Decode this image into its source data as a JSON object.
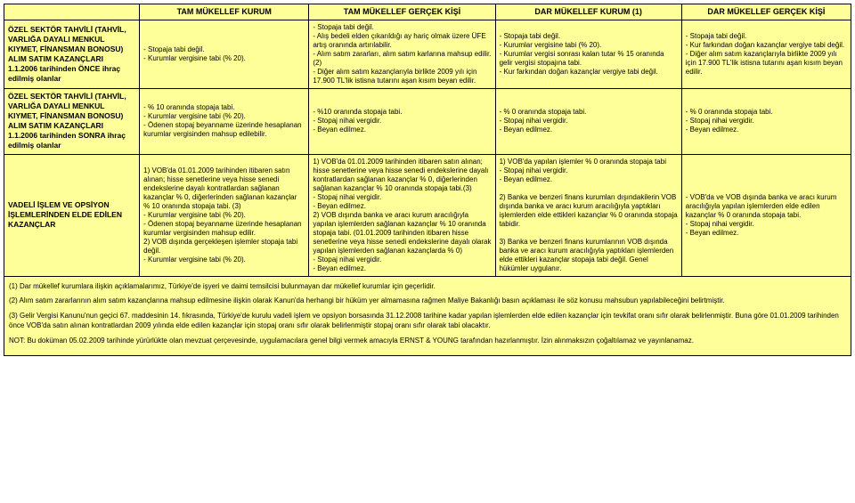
{
  "colors": {
    "background": "#ffff99",
    "border": "#000000",
    "text": "#000000"
  },
  "headers": {
    "c0": "",
    "c1": "TAM MÜKELLEF KURUM",
    "c2": "TAM MÜKELLEF GERÇEK KİŞİ",
    "c3": "DAR MÜKELLEF KURUM (1)",
    "c4": "DAR MÜKELLEF GERÇEK KİŞİ"
  },
  "rows": [
    {
      "label": "ÖZEL SEKTÖR TAHVİLİ (TAHVİL, VARLIĞA DAYALI MENKUL KIYMET, FİNANSMAN BONOSU) ALIM SATIM KAZANÇLARI\n1.1.2006 tarihinden ÖNCE ihraç edilmiş olanlar",
      "c1": "- Stopaja tabi değil.\n- Kurumlar vergisine tabi (% 20).",
      "c2": "- Stopaja tabi değil.\n- Alış bedeli elden çıkarıldığı ay hariç olmak üzere ÜFE artış oranında artırılabilir.\n- Alım satım zararları, alım satım karlarına mahsup edilir. (2)\n- Diğer alım satım kazançlarıyla birlikte 2009 yılı için 17.900 TL'lik istisna tutarını aşan kısım beyan edilir.",
      "c3": "- Stopaja tabi değil.\n- Kurumlar vergisine tabi (% 20).\n- Kurumlar vergisi sonrası kalan tutar % 15 oranında gelir vergisi stopajına tabi.\n- Kur farkından doğan kazançlar vergiye tabi değil.",
      "c4": "- Stopaja tabi değil.\n- Kur farkından doğan kazançlar vergiye tabi değil.\n- Diğer alım satım kazançlarıyla birlikte 2009 yılı için 17.900 TL'lik istisna tutarını aşan kısım beyan edilir."
    },
    {
      "label": "ÖZEL SEKTÖR TAHVİLİ (TAHVİL, VARLIĞA DAYALI MENKUL KIYMET, FİNANSMAN BONOSU) ALIM SATIM KAZANÇLARI\n1.1.2006 tarihinden SONRA ihraç edilmiş olanlar",
      "c1": "- % 10 oranında stopaja tabi.\n- Kurumlar vergisine tabi (% 20).\n- Ödenen stopaj beyanname üzerinde hesaplanan kurumlar vergisinden mahsup edilebilir.",
      "c2": "- %10 oranında stopaja tabi.\n- Stopaj nihai vergidir.\n- Beyan edilmez.",
      "c3": "- % 0 oranında stopaja tabi.\n- Stopaj nihai vergidir.\n- Beyan edilmez.",
      "c4": "- % 0 oranında stopaja tabi.\n- Stopaj nihai vergidir.\n- Beyan edilmez."
    },
    {
      "label": "VADELİ İŞLEM VE OPSİYON İŞLEMLERİNDEN ELDE EDİLEN KAZANÇLAR",
      "c1": "1) VOB'da 01.01.2009 tarihinden itibaren satın alınan; hisse senetlerine veya hisse senedi endekslerine dayalı kontratlardan sağlanan kazançlar % 0, diğerlerinden sağlanan kazançlar % 10 oranında stopaja tabi. (3)\n- Kurumlar vergisine tabi (% 20).\n- Ödenen stopaj beyanname üzerinde hesaplanan kurumlar vergisinden mahsup edilir.\n2) VOB dışında gerçekleşen işlemler stopaja tabi değil.\n- Kurumlar vergisine tabi (% 20).",
      "c2": "1) VOB'da 01.01.2009 tarihinden itibaren satın alınan; hisse senetlerine veya hisse senedi endekslerine dayalı kontratlardan sağlanan kazançlar % 0, diğerlerinden sağlanan kazançlar % 10 oranında stopaja tabi.(3)\n- Stopaj nihai vergidir.\n- Beyan edilmez.\n2) VOB dışında banka ve aracı kurum aracılığıyla yapılan işlemlerden sağlanan kazançlar % 10 oranında stopaja tabi. (01.01.2009 tarihinden itibaren hisse senetlerine veya hisse senedi endekslerine dayalı olarak yapılan işlemlerden sağlanan kazançlarda % 0)\n- Stopaj nihai vergidir.\n- Beyan edilmez.",
      "c3": "1) VOB'da yapılan işlemler % 0 oranında stopaja tabi\n- Stopaj nihai vergidir.\n- Beyan edilmez.\n\n2) Banka ve benzeri finans kurumları dışındakilerin VOB dışında banka ve aracı kurum aracılığıyla yaptıkları işlemlerden elde ettikleri kazançlar % 0 oranında stopaja tabidir.\n\n3) Banka ve benzeri finans kurumlarının VOB dışında banka ve aracı kurum aracılığıyla yaptıkları işlemlerden elde ettikleri kazançlar stopaja tabi değil. Genel hükümler uygulanır.",
      "c4": "- VOB'da ve VOB dışında banka ve aracı kurum aracılığıyla yapılan işlemlerden elde edilen kazançlar % 0 oranında stopaja tabi.\n- Stopaj nihai vergidir.\n- Beyan edilmez."
    }
  ],
  "footnotes": [
    "(1) Dar mükellef kurumlara ilişkin açıklamalarımız, Türkiye'de işyeri ve daimi temsilcisi bulunmayan dar mükellef kurumlar için geçerlidir.",
    "(2) Alım satım zararlarının alım satım kazançlarına mahsup edilmesine ilişkin olarak Kanun'da herhangi bir hüküm yer almamasına rağmen Maliye Bakanlığı basın açıklaması ile söz konusu mahsubun yapılabileceğini belirtmiştir.",
    "(3) Gelir Vergisi Kanunu'nun geçici 67. maddesinin 14. fıkrasında, Türkiye'de kurulu vadeli işlem ve opsiyon borsasında 31.12.2008 tarihine kadar yapılan işlemlerden elde edilen kazançlar için tevkifat oranı sıfır olarak belirlenmiştir. Buna göre 01.01.2009 tarihinden önce VOB'da satın alınan kontratlardan 2009 yılında elde edilen kazançlar için stopaj oranı sıfır olarak belirlenmiştir stopaj oranı sıfır olarak tabi olacaktır.",
    "NOT: Bu doküman 05.02.2009 tarihinde yürürlükte olan mevzuat çerçevesinde, uygulamacılara genel bilgi vermek amacıyla ERNST & YOUNG tarafından hazırlanmıştır. İzin alınmaksızın çoğaltılamaz ve yayınlanamaz."
  ]
}
